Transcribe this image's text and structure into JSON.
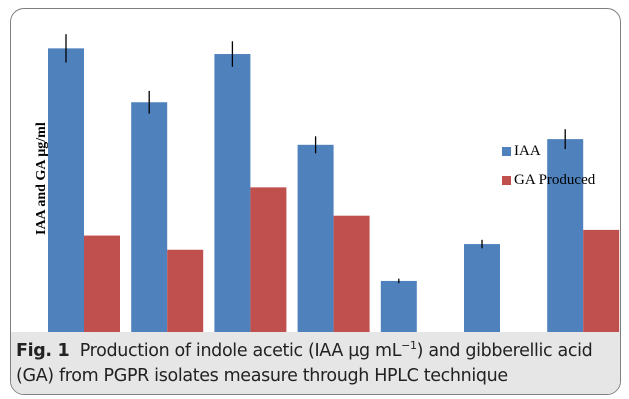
{
  "chart_data": {
    "type": "bar",
    "categories": [
      "",
      "",
      "",
      "",
      "",
      "",
      ""
    ],
    "series": [
      {
        "name": "IAA",
        "color": "#4f81bd",
        "values": [
          100,
          81,
          98,
          66,
          18,
          31,
          68
        ],
        "errors": [
          5,
          4,
          4.5,
          3,
          0.8,
          1.5,
          3.5
        ]
      },
      {
        "name": "GA Produced",
        "color": "#c0504d",
        "values": [
          34,
          29,
          51,
          41,
          null,
          null,
          36
        ],
        "errors": null
      }
    ],
    "ylabel": "IAA and GA µg/ml",
    "ylim": [
      0,
      110
    ],
    "grid": false,
    "legend_position": "right"
  },
  "caption": {
    "label": "Fig. 1",
    "text_part1": "Production of indole acetic (IAA µg mL",
    "sup": "−1",
    "text_part2": ") and gibberellic acid (GA) from PGPR isolates measure through HPLC technique"
  }
}
